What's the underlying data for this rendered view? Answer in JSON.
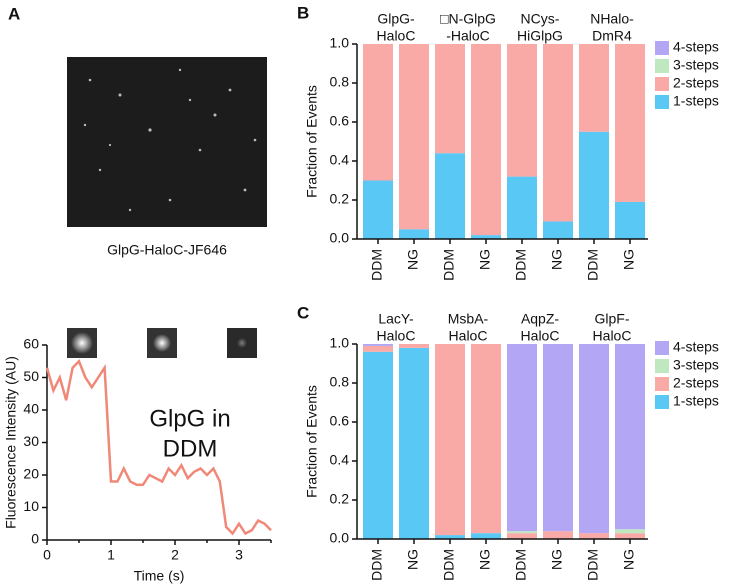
{
  "chart_data": [
    {
      "type": "line",
      "label": "A",
      "image_caption": "GlpG-HaloC-JF646",
      "annotation": [
        "GlpG in",
        "DDM"
      ],
      "x_label": "Time (s)",
      "y_label": "Fluorescence Intensity (AU)",
      "x": [
        0,
        0.1,
        0.2,
        0.3,
        0.4,
        0.5,
        0.6,
        0.7,
        0.8,
        0.9,
        1.0,
        1.1,
        1.2,
        1.3,
        1.4,
        1.5,
        1.6,
        1.7,
        1.8,
        1.9,
        2.0,
        2.1,
        2.2,
        2.3,
        2.4,
        2.5,
        2.6,
        2.7,
        2.8,
        2.9,
        3.0,
        3.1,
        3.2,
        3.3,
        3.4,
        3.5
      ],
      "values": [
        53,
        46,
        50,
        43,
        53,
        55,
        50,
        47,
        50,
        53,
        18,
        18,
        22,
        18,
        17,
        17,
        20,
        19,
        18,
        22,
        20,
        23,
        19,
        21,
        22,
        20,
        22,
        18,
        4,
        2,
        5,
        2,
        3,
        6,
        5,
        3
      ],
      "color": "#f08878",
      "xlim": [
        0,
        3.5
      ],
      "xticks": [
        0,
        1,
        2,
        3
      ],
      "ylim": [
        0,
        60
      ],
      "yticks": [
        0,
        10,
        20,
        30,
        40,
        50,
        60
      ]
    },
    {
      "type": "stacked_bar",
      "label": "B",
      "y_label": "Fraction of Events",
      "groups": [
        [
          "GlpG-",
          "HaloC"
        ],
        [
          "□N-GlpG",
          "-HaloC"
        ],
        [
          "NCys-",
          "HiGlpG"
        ],
        [
          "NHalo-",
          "DmR4"
        ]
      ],
      "categories": [
        "DDM",
        "NG",
        "DDM",
        "NG",
        "DDM",
        "NG",
        "DDM",
        "NG"
      ],
      "series": [
        {
          "name": "1-steps",
          "color": "#5ac8f5",
          "values": [
            0.3,
            0.05,
            0.44,
            0.02,
            0.32,
            0.09,
            0.55,
            0.19
          ]
        },
        {
          "name": "2-steps",
          "color": "#f9aaa6",
          "values": [
            0.7,
            0.95,
            0.56,
            0.98,
            0.68,
            0.91,
            0.45,
            0.81
          ]
        },
        {
          "name": "3-steps",
          "color": "#bfe8c0",
          "values": [
            0,
            0,
            0,
            0,
            0,
            0,
            0,
            0
          ]
        },
        {
          "name": "4-steps",
          "color": "#b3a6f5",
          "values": [
            0,
            0,
            0,
            0,
            0,
            0,
            0,
            0
          ]
        }
      ],
      "ylim": [
        0,
        1
      ],
      "yticks": [
        {
          "value": 0,
          "label": "0.0"
        },
        0.2,
        0.4,
        0.6,
        0.8,
        {
          "value": 1,
          "label": "1.0"
        }
      ]
    },
    {
      "type": "stacked_bar",
      "label": "C",
      "y_label": "Fraction of Events",
      "groups": [
        [
          "LacY-",
          "HaloC"
        ],
        [
          "MsbA-",
          "HaloC"
        ],
        [
          "AqpZ-",
          "HaloC"
        ],
        [
          "GlpF-",
          "HaloC"
        ]
      ],
      "categories": [
        "DDM",
        "NG",
        "DDM",
        "NG",
        "DDM",
        "NG",
        "DDM",
        "NG"
      ],
      "series": [
        {
          "name": "1-steps",
          "color": "#5ac8f5",
          "values": [
            0.96,
            0.98,
            0.02,
            0.03,
            0,
            0,
            0,
            0
          ]
        },
        {
          "name": "2-steps",
          "color": "#f9aaa6",
          "values": [
            0.03,
            0.02,
            0.98,
            0.97,
            0.03,
            0.04,
            0.03,
            0.03
          ]
        },
        {
          "name": "3-steps",
          "color": "#bfe8c0",
          "values": [
            0,
            0,
            0,
            0,
            0.01,
            0,
            0,
            0.02
          ]
        },
        {
          "name": "4-steps",
          "color": "#b3a6f5",
          "values": [
            0.01,
            0,
            0,
            0,
            0.96,
            0.96,
            0.97,
            0.95
          ]
        }
      ],
      "ylim": [
        0,
        1
      ],
      "yticks": [
        {
          "value": 0,
          "label": "0.0"
        },
        0.2,
        0.4,
        0.6,
        0.8,
        {
          "value": 1,
          "label": "1.0"
        }
      ]
    }
  ]
}
